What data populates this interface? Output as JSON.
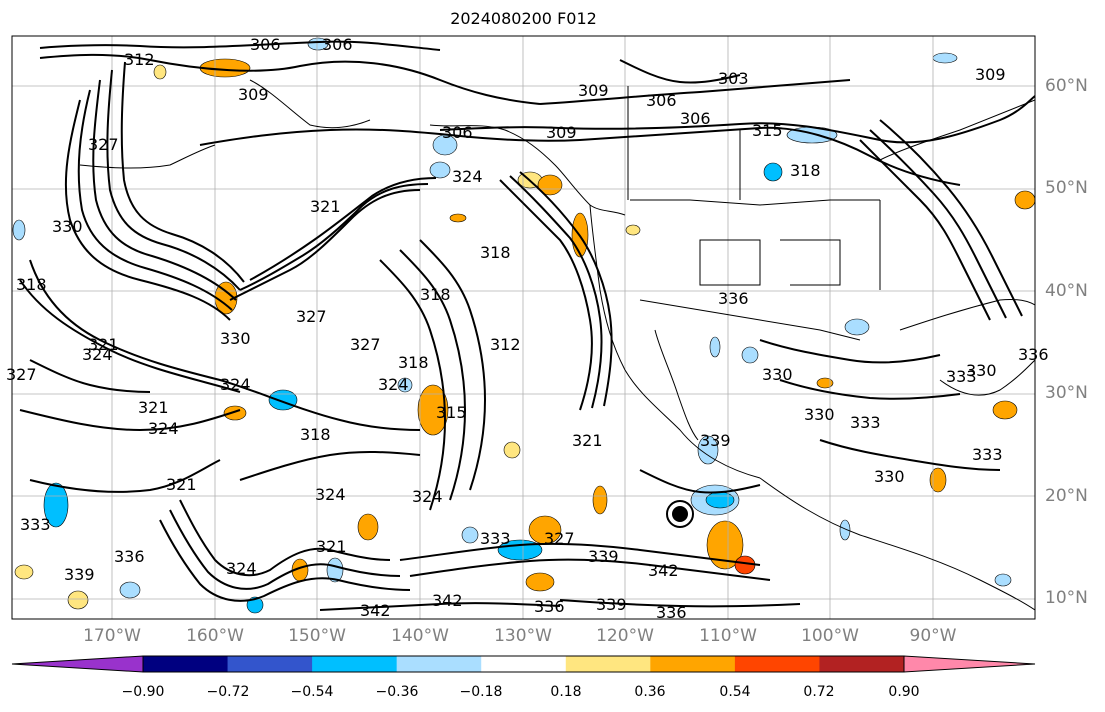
{
  "title": "2024080200 F012",
  "lat_labels": [
    "60°N",
    "50°N",
    "40°N",
    "30°N",
    "20°N",
    "10°N"
  ],
  "lon_labels": [
    "170°W",
    "160°W",
    "150°W",
    "140°W",
    "130°W",
    "120°W",
    "110°W",
    "100°W",
    "90°W"
  ],
  "colorbar": {
    "tick_labels": [
      "−0.90",
      "−0.72",
      "−0.54",
      "−0.36",
      "−0.18",
      "0.18",
      "0.36",
      "0.54",
      "0.72",
      "0.90"
    ],
    "colors": [
      "#9932cc",
      "#000080",
      "#3355cc",
      "#00bfff",
      "#aadeff",
      "#ffffff",
      "#ffe680",
      "#ffa500",
      "#ff4500",
      "#b22222",
      "#ff88aa"
    ]
  },
  "contour_labels": [
    "312",
    "306",
    "306",
    "309",
    "303",
    "309",
    "309",
    "306",
    "306",
    "315",
    "306",
    "309",
    "327",
    "324",
    "318",
    "330",
    "321",
    "336",
    "327",
    "321",
    "318",
    "327",
    "330",
    "324",
    "324",
    "318",
    "312",
    "321",
    "324",
    "318",
    "315",
    "327",
    "324",
    "321",
    "324",
    "318",
    "324",
    "321",
    "330",
    "333",
    "330",
    "333",
    "339",
    "342",
    "342",
    "342",
    "336",
    "339",
    "336",
    "327",
    "339",
    "339",
    "333",
    "336",
    "324",
    "321",
    "333",
    "330",
    "333",
    "318",
    "336",
    "330"
  ],
  "colors": {
    "axis_text": "#808080",
    "contour": "#000000",
    "grid": "#b0b0b0",
    "coast": "#000000"
  }
}
